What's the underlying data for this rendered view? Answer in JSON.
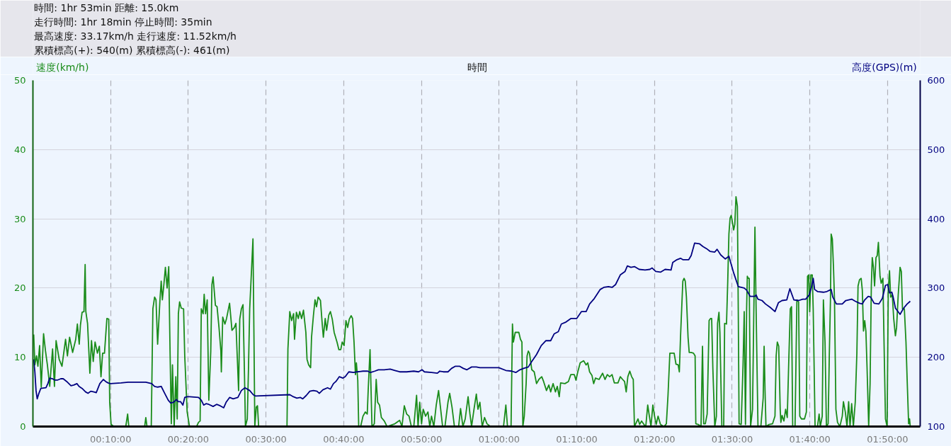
{
  "chart_data": {
    "type": "line",
    "xlabel": "時間",
    "ylabel": "速度(km/h)",
    "y2label": "高度(GPS)(m)",
    "annotations": [
      "時間: 1hr 53min 距離: 15.0km",
      "走行時間: 1hr 18min 停止時間: 35min",
      "最高速度: 33.17km/h 走行速度: 11.52km/h",
      "累積標高(+): 540(m) 累積標高(-): 461(m)"
    ],
    "xlim": [
      0,
      114.2
    ],
    "xticks": [
      {
        "value": 10,
        "label": "00:10:00"
      },
      {
        "value": 20,
        "label": "00:20:00"
      },
      {
        "value": 30,
        "label": "00:30:00"
      },
      {
        "value": 40,
        "label": "00:40:00"
      },
      {
        "value": 50,
        "label": "00:50:00"
      },
      {
        "value": 60,
        "label": "01:00:00"
      },
      {
        "value": 70,
        "label": "01:10:00"
      },
      {
        "value": 80,
        "label": "01:20:00"
      },
      {
        "value": 90,
        "label": "01:30:00"
      },
      {
        "value": 100,
        "label": "01:40:00"
      },
      {
        "value": 110,
        "label": "01:50:00"
      }
    ],
    "ylim": [
      0,
      50
    ],
    "yticks": [
      0,
      10,
      20,
      30,
      40,
      50
    ],
    "y2lim": [
      100,
      600
    ],
    "y2ticks": [
      100,
      200,
      300,
      400,
      500,
      600
    ],
    "grid": true,
    "series": [
      {
        "color": "#1a8c1a",
        "x": [
          0.1,
          0.25,
          0.46,
          0.64,
          0.86,
          1.07,
          1.37,
          1.62,
          1.86,
          2.16,
          2.53,
          2.77,
          2.98,
          3.38,
          3.74,
          4.2,
          4.44,
          4.72,
          5.11,
          5.51,
          5.72,
          5.96,
          6.11,
          6.33,
          6.57,
          6.72,
          6.81,
          7.03,
          7.33,
          7.54,
          7.76,
          8.0,
          8.3,
          8.55,
          8.76,
          8.97,
          9.21,
          9.52,
          9.76,
          9.88,
          10.06,
          10.43,
          11.95,
          12.19,
          12.34,
          14.38,
          14.53,
          14.68,
          15.23,
          15.44,
          15.66,
          15.84,
          16.05,
          16.35,
          16.51,
          16.66,
          16.87,
          17.05,
          17.27,
          17.48,
          17.66,
          17.81,
          17.96,
          18.18,
          18.39,
          18.57,
          18.72,
          18.88,
          19.09,
          19.39,
          19.54,
          19.85,
          20.15,
          21.06,
          21.31,
          21.52,
          21.67,
          21.91,
          22.04,
          22.22,
          22.43,
          22.64,
          22.89,
          23.04,
          23.19,
          23.49,
          23.7,
          23.95,
          24.19,
          24.25,
          24.43,
          24.71,
          24.92,
          25.31,
          25.62,
          25.92,
          26.13,
          26.32,
          26.47,
          26.62,
          26.83,
          27.04,
          27.23,
          27.35,
          27.59,
          27.74,
          27.9,
          28.14,
          28.32,
          28.44,
          28.56,
          28.75,
          28.9,
          29.05,
          32.7,
          32.82,
          33.06,
          33.3,
          33.55,
          33.67,
          33.91,
          34.16,
          34.34,
          34.58,
          34.82,
          35.13,
          35.28,
          35.49,
          35.74,
          35.86,
          36.1,
          36.31,
          36.5,
          36.71,
          37.01,
          37.25,
          37.38,
          37.62,
          37.8,
          38.08,
          38.29,
          38.53,
          38.77,
          39.14,
          39.38,
          39.62,
          39.81,
          40.05,
          40.29,
          40.51,
          40.72,
          40.96,
          41.14,
          41.33,
          41.51,
          41.63,
          41.81,
          41.93,
          42.18,
          42.48,
          42.78,
          43.03,
          43.15,
          43.39,
          43.64,
          43.94,
          44.18,
          44.37,
          44.61,
          44.85,
          45.22,
          45.58,
          46.59,
          47.2,
          47.5,
          47.8,
          48.11,
          48.41,
          48.71,
          49.02,
          49.38,
          49.57,
          49.78,
          50.02,
          50.23,
          50.54,
          50.84,
          51.08,
          51.3,
          51.6,
          51.91,
          52.21,
          52.42,
          52.73,
          53.03,
          53.42,
          53.64,
          53.94,
          54.25,
          54.79,
          55.04,
          55.34,
          55.64,
          56.01,
          56.25,
          56.46,
          56.77,
          57.07,
          57.28,
          57.53,
          57.83,
          58.13,
          58.44,
          58.89,
          60.57,
          60.87,
          61.08,
          61.54,
          61.72,
          61.84,
          62.08,
          62.54,
          62.75,
          62.94,
          63.06,
          63.24,
          63.48,
          63.6,
          63.76,
          63.91,
          64.21,
          64.52,
          64.82,
          65.12,
          65.49,
          65.73,
          66.1,
          66.4,
          66.64,
          66.95,
          67.25,
          67.49,
          67.74,
          67.92,
          68.47,
          68.92,
          69.23,
          69.68,
          69.89,
          70.13,
          70.44,
          70.89,
          71.2,
          71.41,
          71.65,
          71.95,
          72.17,
          72.41,
          72.87,
          73.32,
          73.63,
          73.93,
          74.23,
          74.54,
          74.84,
          75.3,
          75.6,
          75.9,
          76.15,
          76.36,
          76.57,
          76.82,
          77.06,
          77.27,
          77.42,
          77.67,
          77.88,
          78.09,
          78.34,
          78.64,
          78.88,
          79.13,
          79.34,
          79.55,
          79.79,
          80.01,
          80.22,
          80.46,
          80.77,
          81.22,
          81.53,
          81.74,
          81.98,
          82.23,
          82.53,
          82.77,
          83.05,
          83.2,
          83.35,
          83.5,
          83.65,
          83.81,
          83.96,
          84.11,
          84.32,
          84.47,
          84.72,
          85.02,
          85.23,
          85.32,
          85.63,
          85.99,
          86.18,
          86.33,
          86.54,
          86.78,
          87.03,
          87.21,
          87.36,
          87.51,
          87.76,
          87.97,
          88.12,
          88.3,
          88.42,
          88.67,
          88.91,
          89.03,
          89.27,
          89.43,
          89.58,
          89.73,
          89.88,
          90.03,
          90.19,
          90.34,
          90.49,
          90.67,
          90.79,
          90.89,
          91.16,
          91.4,
          91.55,
          91.71,
          91.86,
          91.95,
          92.07,
          92.19,
          92.37,
          92.62,
          92.93,
          93.08,
          93.32,
          93.69,
          93.99,
          94.11,
          94.23,
          94.35,
          94.75,
          95.2,
          95.51,
          95.66,
          95.81,
          95.99,
          96.18,
          96.27,
          96.42,
          96.66,
          96.88,
          97.09,
          97.27,
          97.48,
          97.64,
          97.79,
          98.09,
          98.33,
          98.55,
          98.7,
          98.91,
          99.31,
          99.55,
          99.7,
          99.85,
          99.98,
          100.13,
          100.31,
          100.43,
          100.67,
          100.98,
          101.19,
          101.34,
          101.59,
          101.74,
          101.95,
          102.13,
          102.35,
          102.5,
          102.65,
          102.74,
          102.89,
          103.04,
          103.17,
          103.35,
          103.56,
          103.86,
          104.17,
          104.32,
          104.56,
          104.78,
          104.99,
          105.17,
          105.38,
          105.6,
          105.84,
          106.05,
          106.2,
          106.39,
          106.6,
          106.75,
          106.9,
          107.06,
          107.21,
          107.36,
          107.57,
          107.75,
          107.91,
          108.03,
          108.18,
          108.33,
          108.51,
          108.67,
          108.82,
          109.03,
          109.18,
          109.4,
          109.55,
          109.73,
          109.94,
          110.09,
          110.25,
          110.4,
          110.61,
          110.79,
          111.01,
          111.16,
          111.37,
          111.61,
          111.77,
          111.92,
          112.16,
          112.37,
          112.52,
          112.71,
          112.83,
          112.92
        ],
        "values": [
          13.3,
          8.9,
          10.2,
          8.7,
          11.7,
          5.7,
          13.4,
          10.9,
          8.9,
          5.8,
          11.2,
          5.8,
          12.4,
          9.7,
          8.7,
          12.6,
          10.2,
          12.9,
          10.7,
          12.6,
          14.8,
          11.9,
          14.6,
          16.5,
          16.6,
          23.4,
          16.6,
          14.9,
          7.7,
          12.4,
          9.4,
          12.2,
          10.6,
          11.6,
          7.2,
          10.6,
          10.6,
          15.6,
          15.5,
          3.5,
          0.3,
          0,
          0,
          1.8,
          0,
          0,
          1.3,
          0,
          0,
          17,
          18.7,
          18.3,
          11.9,
          18.3,
          21,
          18.3,
          20.7,
          23,
          20,
          23.1,
          10.2,
          0.4,
          8.9,
          0,
          7.2,
          1.1,
          16.3,
          18,
          17.1,
          17,
          10.2,
          2.1,
          0,
          0,
          0.6,
          0.8,
          17,
          16.3,
          19.1,
          16.3,
          18.3,
          3.8,
          10.9,
          20.5,
          21.6,
          17.5,
          17.3,
          14.3,
          10.9,
          7.9,
          15.8,
          14.8,
          15.6,
          17.8,
          13.9,
          14.3,
          14.9,
          9.5,
          5.2,
          15.5,
          17,
          17.6,
          7.5,
          0,
          1.1,
          8.2,
          17,
          22.7,
          27.1,
          13.9,
          0,
          2.8,
          3,
          0,
          0,
          11.2,
          16.6,
          15.3,
          16.3,
          12.6,
          16.5,
          15.6,
          16.6,
          15.6,
          16.8,
          13.6,
          9.7,
          8.9,
          8.5,
          12.9,
          16,
          18.3,
          17.3,
          18.7,
          18.2,
          14.6,
          12.9,
          15.6,
          13.9,
          16.1,
          16.6,
          15.5,
          13.6,
          12.2,
          11.1,
          11.1,
          12.2,
          11.7,
          15.3,
          14.3,
          15.5,
          16,
          15.6,
          12.2,
          7.5,
          9.2,
          6.7,
          0,
          0,
          1.5,
          2.1,
          1.8,
          5.2,
          11.1,
          0,
          0.4,
          6.8,
          3.5,
          3.1,
          1.3,
          0.8,
          0,
          0.4,
          0.9,
          0,
          3,
          1.8,
          1.5,
          0,
          0,
          4.5,
          0,
          3.5,
          0.4,
          2.5,
          1.5,
          2.1,
          0,
          1.5,
          0,
          3.1,
          5.2,
          3.1,
          0,
          0,
          3.5,
          4.8,
          2.8,
          0,
          0,
          2.6,
          0,
          1.1,
          4.3,
          1.8,
          0,
          2.5,
          4.7,
          2.5,
          3.5,
          0,
          1.3,
          0.4,
          0,
          0,
          3.1,
          0,
          0,
          14.8,
          12.2,
          13.6,
          13.6,
          12.6,
          12.2,
          0,
          1.5,
          6.2,
          10.2,
          10.9,
          10.6,
          8.2,
          7.9,
          6.2,
          6.8,
          7.2,
          6.5,
          5.2,
          6,
          5,
          6.2,
          5,
          5.8,
          4.3,
          6.3,
          6.2,
          6.5,
          7.5,
          7.5,
          6.7,
          7.9,
          9.2,
          9.5,
          8.9,
          9.2,
          7.9,
          7.4,
          6.2,
          7,
          6.8,
          7.7,
          6.8,
          7.5,
          7.2,
          7.5,
          6.3,
          6.3,
          7.2,
          6.8,
          6.5,
          5,
          7.2,
          8,
          7.2,
          6.8,
          0,
          0.6,
          1.1,
          0.3,
          0.8,
          0.3,
          0,
          3.1,
          1.5,
          0,
          3.1,
          1.5,
          0.3,
          1.5,
          0.3,
          0,
          0.4,
          4.5,
          10.6,
          10.6,
          10.6,
          9,
          8.9,
          7.9,
          12.9,
          17,
          21,
          21.4,
          21,
          18.7,
          12.9,
          10.7,
          10.7,
          10.6,
          10.2,
          0.4,
          0.3,
          0,
          11.6,
          0.4,
          0.4,
          1.8,
          15.3,
          15.6,
          15.6,
          8.5,
          0,
          1.5,
          14.9,
          16.5,
          13.6,
          0,
          0,
          14.9,
          14.8,
          21,
          27.8,
          30.1,
          30.5,
          29.5,
          28.4,
          29.2,
          33.2,
          31.8,
          16,
          0.4,
          0.3,
          8.9,
          16.6,
          0.3,
          17,
          21.7,
          21.4,
          21.4,
          0,
          2.5,
          28.8,
          17,
          0,
          0,
          4.1,
          11.6,
          5.2,
          0,
          0.3,
          0.4,
          1.5,
          10.2,
          12.2,
          11.6,
          2.5,
          0.6,
          1.6,
          0.8,
          2.5,
          1.3,
          8.9,
          17,
          17.3,
          0,
          0,
          18.3,
          18,
          1.5,
          1.1,
          1.1,
          2.1,
          21.7,
          21.9,
          16.6,
          21.9,
          21.9,
          16.9,
          0,
          0,
          1.8,
          0,
          1.5,
          18.3,
          12.2,
          0,
          0.4,
          10.2,
          18.3,
          27.8,
          27.1,
          23,
          18.3,
          2.5,
          0.6,
          0,
          1.5,
          3.6,
          2.1,
          0,
          3.6,
          0,
          3.3,
          0,
          3.5,
          10.6,
          20.3,
          21.2,
          21.4,
          19.7,
          13.8,
          15.3,
          13.8,
          8.5,
          0,
          6.2,
          20.3,
          24.4,
          23,
          20.3,
          24.4,
          24.7,
          26.6,
          21.7,
          20.7,
          21.4,
          11.9,
          1.1,
          0,
          19.7,
          22.5,
          18.7,
          19,
          15.6,
          13.1,
          14.3,
          19,
          23,
          22.4,
          17,
          17,
          12.2,
          6.8,
          0.4,
          1.1,
          0
        ]
      },
      {
        "color": "#000080",
        "axis": "y2",
        "x": [
          0.1,
          0.25,
          0.4,
          0.55,
          0.77,
          1.01,
          1.68,
          1.92,
          2.16,
          2.53,
          2.83,
          3.14,
          3.59,
          3.9,
          4.35,
          4.9,
          5.26,
          5.66,
          5.93,
          6.33,
          6.78,
          7.09,
          7.45,
          7.85,
          8.15,
          8.61,
          9.06,
          9.37,
          9.67,
          9.97,
          11.34,
          12.25,
          14.53,
          15.29,
          15.66,
          16.05,
          16.51,
          16.96,
          17.42,
          17.72,
          18.09,
          18.48,
          18.69,
          19.0,
          19.3,
          19.54,
          19.85,
          20.15,
          21.31,
          21.67,
          21.98,
          22.28,
          22.64,
          23.19,
          23.64,
          24.1,
          24.55,
          24.86,
          25.31,
          25.77,
          26.38,
          26.83,
          27.29,
          27.9,
          28.35,
          28.66,
          33.06,
          33.52,
          33.97,
          34.43,
          34.73,
          35.19,
          35.64,
          36.1,
          36.56,
          36.86,
          37.32,
          37.92,
          38.29,
          38.68,
          38.99,
          39.44,
          39.9,
          40.2,
          40.66,
          41.27,
          41.72,
          42.48,
          43.09,
          43.45,
          44.0,
          44.46,
          45.22,
          45.98,
          46.59,
          47.2,
          47.65,
          48.11,
          49.02,
          49.63,
          50.08,
          50.39,
          51.3,
          52.06,
          52.36,
          52.82,
          53.42,
          53.88,
          54.34,
          54.94,
          55.4,
          55.86,
          56.46,
          57.07,
          57.53,
          58.13,
          59.96,
          60.87,
          61.63,
          62.15,
          62.69,
          63.15,
          63.76,
          64.21,
          64.82,
          65.43,
          66.03,
          66.64,
          67.1,
          67.62,
          68.01,
          68.62,
          69.23,
          69.98,
          70.59,
          71.2,
          71.65,
          72.26,
          73.02,
          73.47,
          74.08,
          74.54,
          74.99,
          75.6,
          76.21,
          76.51,
          76.97,
          77.42,
          78.03,
          78.79,
          79.4,
          79.7,
          80.16,
          80.77,
          81.37,
          82.13,
          82.35,
          82.89,
          83.35,
          83.65,
          84.11,
          84.41,
          84.72,
          85.17,
          85.78,
          86.24,
          86.69,
          87.15,
          87.76,
          88.06,
          88.52,
          89.12,
          89.58,
          90.19,
          90.79,
          91.55,
          91.86,
          92.31,
          92.92,
          93.08,
          93.32,
          93.84,
          94.29,
          94.9,
          95.51,
          95.96,
          96.42,
          97.03,
          97.42,
          97.94,
          98.55,
          99.09,
          99.46,
          99.91,
          100.22,
          100.43,
          100.61,
          100.98,
          101.74,
          102.19,
          102.74,
          102.95,
          103.41,
          104.17,
          104.62,
          105.38,
          105.84,
          106.39,
          106.75,
          107.06,
          107.51,
          107.82,
          108.27,
          108.88,
          109.33,
          109.73,
          110.03,
          110.25,
          110.55,
          110.7,
          111.01,
          111.61,
          112.07,
          112.52,
          112.92
        ],
        "values": [
          197,
          179,
          152,
          140,
          148,
          155,
          156,
          162,
          170,
          169,
          167,
          167,
          169,
          169,
          165,
          159,
          160,
          162,
          158,
          155,
          150,
          148,
          151,
          150,
          149,
          162,
          168,
          165,
          163,
          162,
          163,
          164,
          164,
          162,
          158,
          157,
          158,
          148,
          138,
          134,
          135,
          139,
          136,
          136,
          131,
          142,
          143,
          143,
          142,
          138,
          131,
          133,
          132,
          129,
          132,
          130,
          127,
          135,
          142,
          140,
          142,
          152,
          156,
          152,
          146,
          144,
          146,
          143,
          141,
          142,
          140,
          145,
          151,
          152,
          151,
          148,
          153,
          156,
          154,
          162,
          165,
          172,
          170,
          172,
          179,
          178,
          179,
          180,
          180,
          178,
          180,
          182,
          182,
          183,
          181,
          179,
          179,
          179,
          180,
          179,
          182,
          179,
          178,
          177,
          180,
          179,
          179,
          184,
          187,
          187,
          184,
          182,
          186,
          186,
          185,
          185,
          185,
          181,
          180,
          178,
          182,
          184,
          186,
          194,
          204,
          217,
          224,
          224,
          234,
          237,
          248,
          251,
          256,
          256,
          266,
          266,
          277,
          285,
          298,
          301,
          302,
          301,
          305,
          319,
          324,
          332,
          330,
          331,
          327,
          326,
          327,
          329,
          324,
          323,
          327,
          326,
          337,
          341,
          343,
          341,
          341,
          341,
          347,
          365,
          364,
          360,
          357,
          353,
          352,
          356,
          348,
          342,
          346,
          322,
          302,
          300,
          297,
          288,
          288,
          290,
          284,
          282,
          277,
          272,
          266,
          279,
          282,
          283,
          299,
          283,
          282,
          284,
          284,
          290,
          302,
          314,
          298,
          295,
          294,
          295,
          298,
          287,
          277,
          277,
          282,
          284,
          281,
          278,
          277,
          283,
          288,
          287,
          278,
          277,
          285,
          304,
          305,
          293,
          294,
          288,
          271,
          262,
          271,
          277,
          281
        ]
      }
    ]
  }
}
